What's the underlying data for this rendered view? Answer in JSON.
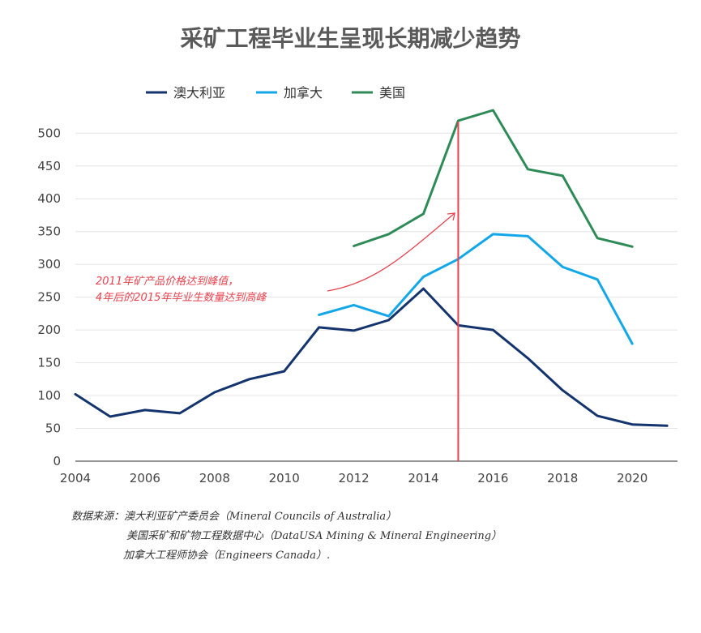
{
  "chart_data": {
    "type": "line",
    "title": "采矿工程毕业生呈现长期减少趋势",
    "xlabel": "",
    "ylabel": "",
    "xlim": [
      2004,
      2021.3
    ],
    "ylim": [
      0,
      530
    ],
    "x_ticks": [
      "2004",
      "2006",
      "2008",
      "2010",
      "2012",
      "2014",
      "2016",
      "2018",
      "2020"
    ],
    "y_ticks": [
      "0",
      "50",
      "100",
      "150",
      "200",
      "250",
      "300",
      "350",
      "400",
      "450",
      "500"
    ],
    "grid": "horizontal",
    "legend_position": "top-left",
    "series": [
      {
        "name": "澳大利亚",
        "color": "#14346e",
        "x": [
          2004,
          2005,
          2006,
          2007,
          2008,
          2009,
          2010,
          2011,
          2012,
          2013,
          2014,
          2015,
          2016,
          2017,
          2018,
          2019,
          2020,
          2021
        ],
        "values": [
          102,
          68,
          78,
          73,
          105,
          125,
          137,
          204,
          199,
          215,
          263,
          207,
          200,
          157,
          108,
          69,
          56,
          54
        ]
      },
      {
        "name": "加拿大",
        "color": "#13a7e8",
        "x": [
          2011,
          2012,
          2013,
          2014,
          2015,
          2016,
          2017,
          2018,
          2019,
          2020
        ],
        "values": [
          223,
          238,
          221,
          281,
          308,
          346,
          343,
          296,
          277,
          179
        ]
      },
      {
        "name": "美国",
        "color": "#2e8b57",
        "x": [
          2012,
          2013,
          2014,
          2015,
          2016,
          2017,
          2018,
          2019,
          2020
        ],
        "values": [
          328,
          346,
          377,
          519,
          535,
          445,
          435,
          340,
          327
        ]
      }
    ],
    "reference_line": {
      "x": 2015,
      "color": "#e8434e"
    },
    "annotation": {
      "lines": [
        "2011年矿产品价格达到峰值，",
        "4年后的2015年毕业生数量达到高峰"
      ],
      "color": "#e8434e"
    }
  },
  "source": {
    "line1": "数据来源：澳大利亚矿产委员会（Mineral Councils of Australia）",
    "line2": "美国采矿和矿物工程数据中心（DataUSA Mining & Mineral Engineering）",
    "line3": "加拿大工程师协会（Engineers Canada）."
  }
}
